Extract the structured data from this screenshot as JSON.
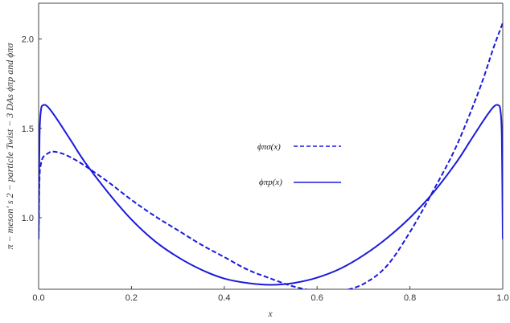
{
  "chart_data": {
    "type": "line",
    "xlabel": "x",
    "ylabel": "π − meson' s 2 − particle Twist − 3 DAs ϕπp and ϕπσ",
    "xlim": [
      0.0,
      1.0
    ],
    "ylim": [
      0.6,
      2.2
    ],
    "xticks": [
      "0.0",
      "0.2",
      "0.4",
      "0.6",
      "0.8",
      "1.0"
    ],
    "yticks": [
      "1.0",
      "1.5",
      "2.0"
    ],
    "grid": false,
    "legend_position": "center",
    "series": [
      {
        "name": "ϕπσ(x)",
        "style": "dashed",
        "color": "#1a1adc",
        "x": [
          0.0,
          0.002,
          0.005,
          0.01,
          0.02,
          0.03,
          0.05,
          0.075,
          0.1,
          0.15,
          0.2,
          0.25,
          0.3,
          0.35,
          0.4,
          0.45,
          0.5,
          0.55,
          0.6,
          0.65,
          0.7,
          0.75,
          0.8,
          0.85,
          0.9,
          0.95,
          0.98,
          1.0
        ],
        "y": [
          0.88,
          1.22,
          1.3,
          1.34,
          1.36,
          1.37,
          1.36,
          1.33,
          1.29,
          1.2,
          1.1,
          1.01,
          0.93,
          0.85,
          0.78,
          0.71,
          0.66,
          0.615,
          0.59,
          0.59,
          0.63,
          0.73,
          0.92,
          1.15,
          1.4,
          1.72,
          1.95,
          2.09
        ]
      },
      {
        "name": "ϕπp(x)",
        "style": "solid",
        "color": "#1a1adc",
        "x": [
          0.0,
          0.002,
          0.005,
          0.01,
          0.02,
          0.04,
          0.07,
          0.1,
          0.15,
          0.2,
          0.25,
          0.3,
          0.35,
          0.4,
          0.45,
          0.5,
          0.55,
          0.6,
          0.65,
          0.7,
          0.75,
          0.8,
          0.85,
          0.9,
          0.93,
          0.96,
          0.98,
          0.99,
          0.995,
          0.998,
          1.0
        ],
        "y": [
          0.88,
          1.45,
          1.6,
          1.63,
          1.62,
          1.55,
          1.43,
          1.31,
          1.14,
          0.99,
          0.87,
          0.78,
          0.71,
          0.66,
          0.635,
          0.625,
          0.635,
          0.665,
          0.715,
          0.79,
          0.885,
          1.0,
          1.14,
          1.31,
          1.43,
          1.55,
          1.62,
          1.63,
          1.6,
          1.45,
          0.88
        ]
      }
    ]
  }
}
